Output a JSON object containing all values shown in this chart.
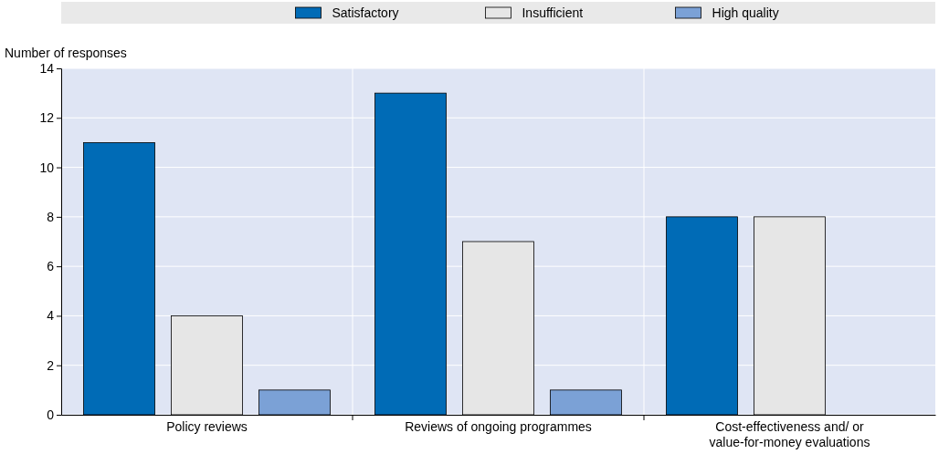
{
  "chart_data": {
    "type": "bar",
    "ylabel": "Number of responses",
    "categories": [
      "Policy reviews",
      "Reviews of ongoing programmes",
      "Cost-effectiveness and/ or value-for-money evaluations"
    ],
    "series": [
      {
        "name": "Satisfactory",
        "color": "#006bb6",
        "values": [
          11,
          13,
          8
        ]
      },
      {
        "name": "Insufficient",
        "color": "#e6e6e6",
        "values": [
          4,
          7,
          8
        ]
      },
      {
        "name": "High quality",
        "color": "#7ba1d6",
        "values": [
          1,
          1,
          0
        ]
      }
    ],
    "ylim": [
      0,
      14
    ],
    "yticks": [
      0,
      2,
      4,
      6,
      8,
      10,
      12,
      14
    ],
    "grid": "y",
    "legend": "top"
  }
}
